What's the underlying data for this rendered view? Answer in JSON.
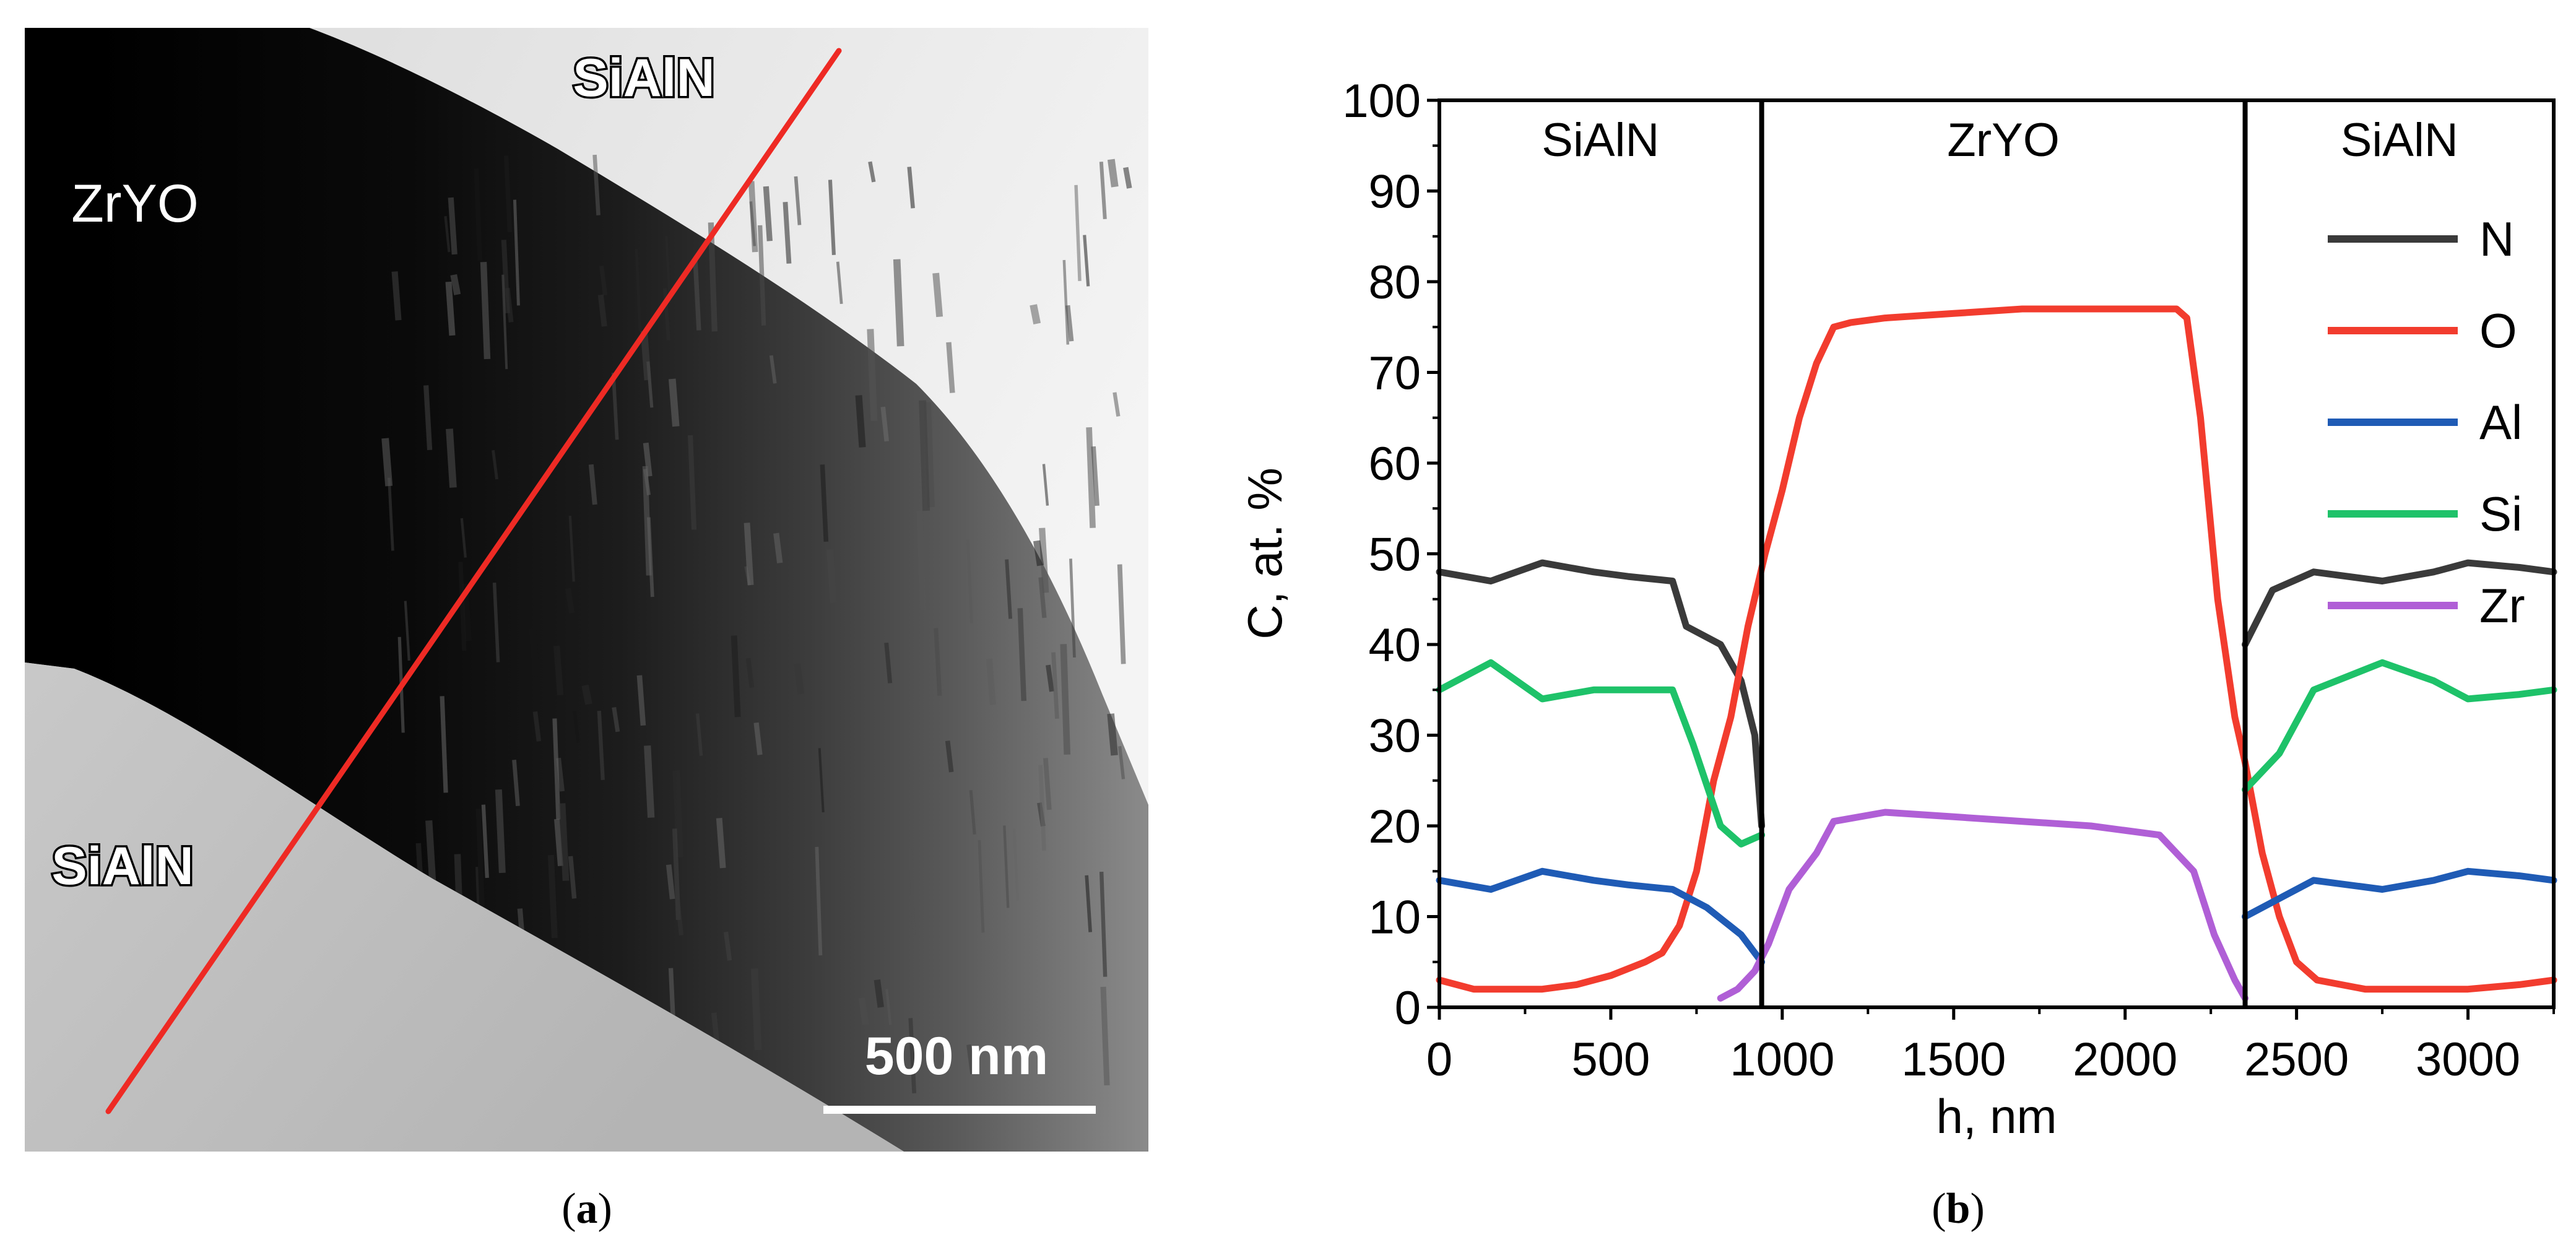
{
  "panel_a": {
    "scale_bar_label": "500 nm",
    "label_top_layer": "SiAlN",
    "label_middle_layer": "ZrYO",
    "label_bottom_layer": "SiAlN",
    "caption_open": "(",
    "caption_letter": "a",
    "caption_close": ")",
    "line_color": "#ee2a24"
  },
  "panel_b": {
    "caption_open": "(",
    "caption_letter": "b",
    "caption_close": ")"
  },
  "chart_data": {
    "type": "line",
    "xlabel": "h, nm",
    "ylabel": "C, at. %",
    "xlim": [
      0,
      3250
    ],
    "ylim": [
      0,
      100
    ],
    "xticks": [
      0,
      500,
      1000,
      1500,
      2000,
      2500,
      3000
    ],
    "yticks": [
      0,
      10,
      20,
      30,
      40,
      50,
      60,
      70,
      80,
      90,
      100
    ],
    "regions": [
      {
        "label": "SiAlN",
        "x_start": 0,
        "x_end": 940
      },
      {
        "label": "ZrYO",
        "x_start": 940,
        "x_end": 2350
      },
      {
        "label": "SiAlN",
        "x_start": 2350,
        "x_end": 3250
      }
    ],
    "boundaries": [
      940,
      2350
    ],
    "legend_position": "right",
    "series": [
      {
        "name": "N",
        "color": "#3a3a3a",
        "segments": [
          [
            [
              0,
              48
            ],
            [
              150,
              47
            ],
            [
              300,
              49
            ],
            [
              450,
              48
            ],
            [
              550,
              47.5
            ],
            [
              680,
              47
            ],
            [
              720,
              42
            ],
            [
              820,
              40
            ],
            [
              880,
              36
            ],
            [
              920,
              30
            ],
            [
              940,
              20
            ]
          ],
          [
            [
              2350,
              40
            ],
            [
              2430,
              46
            ],
            [
              2550,
              48
            ],
            [
              2750,
              47
            ],
            [
              2900,
              48
            ],
            [
              3000,
              49
            ],
            [
              3150,
              48.5
            ],
            [
              3250,
              48
            ]
          ]
        ]
      },
      {
        "name": "O",
        "color": "#f23c2e",
        "segments": [
          [
            [
              0,
              3
            ],
            [
              100,
              2
            ],
            [
              300,
              2
            ],
            [
              400,
              2.5
            ],
            [
              500,
              3.5
            ],
            [
              600,
              5
            ],
            [
              650,
              6
            ],
            [
              700,
              9
            ],
            [
              750,
              15
            ],
            [
              800,
              25
            ],
            [
              850,
              32
            ],
            [
              900,
              42
            ],
            [
              950,
              50
            ],
            [
              1000,
              57
            ],
            [
              1050,
              65
            ],
            [
              1100,
              71
            ],
            [
              1150,
              75
            ],
            [
              1200,
              75.5
            ],
            [
              1300,
              76
            ],
            [
              1500,
              76.5
            ],
            [
              1700,
              77
            ],
            [
              2000,
              77
            ],
            [
              2150,
              77
            ],
            [
              2180,
              76
            ],
            [
              2220,
              65
            ],
            [
              2270,
              45
            ],
            [
              2320,
              32
            ],
            [
              2350,
              27
            ],
            [
              2400,
              17
            ],
            [
              2450,
              10
            ],
            [
              2500,
              5
            ],
            [
              2560,
              3
            ],
            [
              2700,
              2
            ],
            [
              3000,
              2
            ],
            [
              3150,
              2.5
            ],
            [
              3250,
              3
            ]
          ]
        ]
      },
      {
        "name": "Al",
        "color": "#1f5bb5",
        "segments": [
          [
            [
              0,
              14
            ],
            [
              150,
              13
            ],
            [
              300,
              15
            ],
            [
              450,
              14
            ],
            [
              550,
              13.5
            ],
            [
              680,
              13
            ],
            [
              780,
              11
            ],
            [
              880,
              8
            ],
            [
              940,
              5
            ]
          ],
          [
            [
              2350,
              10
            ],
            [
              2450,
              12
            ],
            [
              2550,
              14
            ],
            [
              2750,
              13
            ],
            [
              2900,
              14
            ],
            [
              3000,
              15
            ],
            [
              3150,
              14.5
            ],
            [
              3250,
              14
            ]
          ]
        ]
      },
      {
        "name": "Si",
        "color": "#1ec269",
        "segments": [
          [
            [
              0,
              35
            ],
            [
              150,
              38
            ],
            [
              300,
              34
            ],
            [
              450,
              35
            ],
            [
              550,
              35
            ],
            [
              680,
              35
            ],
            [
              740,
              29
            ],
            [
              820,
              20
            ],
            [
              880,
              18
            ],
            [
              940,
              19
            ]
          ],
          [
            [
              2350,
              24
            ],
            [
              2450,
              28
            ],
            [
              2550,
              35
            ],
            [
              2750,
              38
            ],
            [
              2900,
              36
            ],
            [
              3000,
              34
            ],
            [
              3150,
              34.5
            ],
            [
              3250,
              35
            ]
          ]
        ]
      },
      {
        "name": "Zr",
        "color": "#b05fd6",
        "segments": [
          [
            [
              820,
              1
            ],
            [
              870,
              2
            ],
            [
              920,
              4
            ],
            [
              960,
              7
            ],
            [
              1020,
              13
            ],
            [
              1100,
              17
            ],
            [
              1150,
              20.5
            ],
            [
              1300,
              21.5
            ],
            [
              1500,
              21
            ],
            [
              1700,
              20.5
            ],
            [
              1900,
              20
            ],
            [
              2100,
              19
            ],
            [
              2200,
              15
            ],
            [
              2260,
              8
            ],
            [
              2320,
              3
            ],
            [
              2350,
              1
            ]
          ]
        ]
      }
    ]
  }
}
